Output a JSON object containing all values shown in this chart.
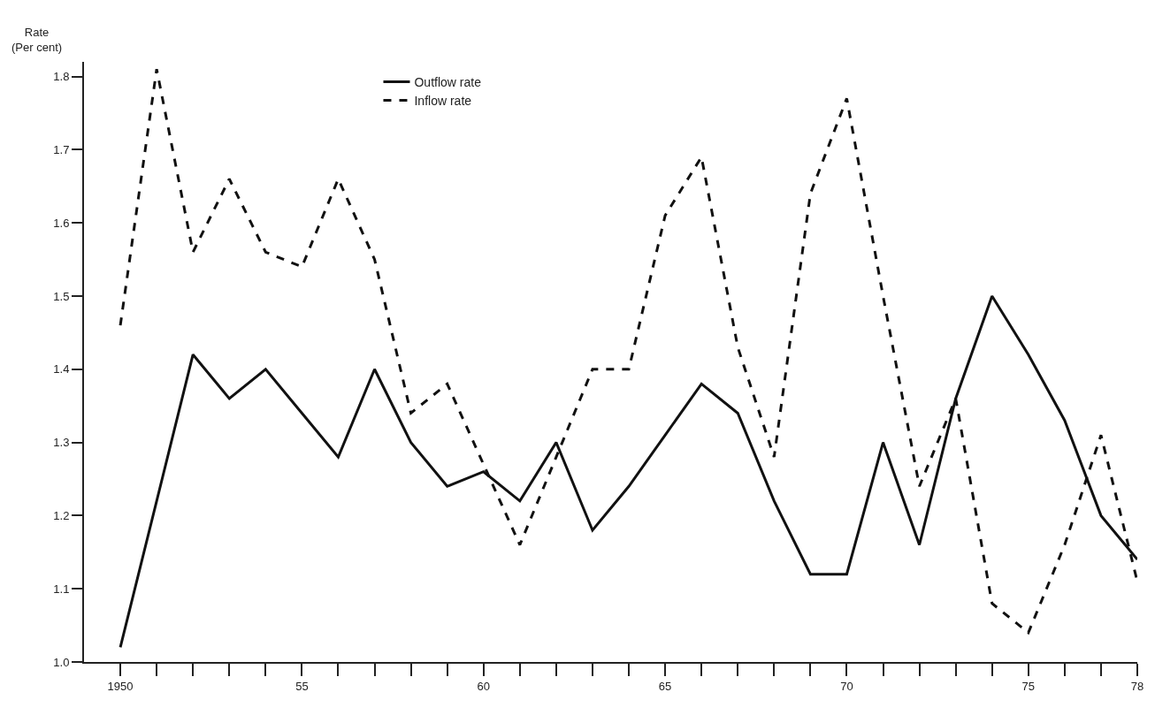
{
  "chart_data": {
    "type": "line",
    "ylabel": "Rate\n(Per cent)",
    "x": [
      1950,
      1951,
      1952,
      1953,
      1954,
      1955,
      1956,
      1957,
      1958,
      1959,
      1960,
      1961,
      1962,
      1963,
      1964,
      1965,
      1966,
      1967,
      1968,
      1969,
      1970,
      1971,
      1972,
      1973,
      1974,
      1975,
      1976,
      1977,
      1978
    ],
    "series": [
      {
        "name": "Outflow rate",
        "color": "#111111",
        "line_style": "solid",
        "values": [
          1.02,
          1.22,
          1.42,
          1.36,
          1.4,
          1.34,
          1.28,
          1.4,
          1.3,
          1.24,
          1.26,
          1.22,
          1.3,
          1.18,
          1.24,
          1.31,
          1.38,
          1.34,
          1.22,
          1.12,
          1.12,
          1.3,
          1.16,
          1.36,
          1.5,
          1.42,
          1.33,
          1.2,
          1.14
        ]
      },
      {
        "name": "Inflow rate",
        "color": "#111111",
        "line_style": "dashed",
        "values": [
          1.46,
          1.81,
          1.56,
          1.66,
          1.56,
          1.54,
          1.66,
          1.55,
          1.34,
          1.38,
          1.27,
          1.16,
          1.28,
          1.4,
          1.4,
          1.61,
          1.69,
          1.43,
          1.28,
          1.64,
          1.77,
          1.5,
          1.24,
          1.36,
          1.08,
          1.04,
          1.16,
          1.31,
          1.11
        ]
      }
    ],
    "xlim": [
      1949,
      1978
    ],
    "xticks": [
      {
        "value": 1950,
        "label": "1950"
      },
      {
        "value": 1951,
        "label": null
      },
      {
        "value": 1952,
        "label": null
      },
      {
        "value": 1953,
        "label": null
      },
      {
        "value": 1954,
        "label": null
      },
      {
        "value": 1955,
        "label": "55"
      },
      {
        "value": 1956,
        "label": null
      },
      {
        "value": 1957,
        "label": null
      },
      {
        "value": 1958,
        "label": null
      },
      {
        "value": 1959,
        "label": null
      },
      {
        "value": 1960,
        "label": "60"
      },
      {
        "value": 1961,
        "label": null
      },
      {
        "value": 1962,
        "label": null
      },
      {
        "value": 1963,
        "label": null
      },
      {
        "value": 1964,
        "label": null
      },
      {
        "value": 1965,
        "label": "65"
      },
      {
        "value": 1966,
        "label": null
      },
      {
        "value": 1967,
        "label": null
      },
      {
        "value": 1968,
        "label": null
      },
      {
        "value": 1969,
        "label": null
      },
      {
        "value": 1970,
        "label": "70"
      },
      {
        "value": 1971,
        "label": null
      },
      {
        "value": 1972,
        "label": null
      },
      {
        "value": 1973,
        "label": null
      },
      {
        "value": 1974,
        "label": null
      },
      {
        "value": 1975,
        "label": "75"
      },
      {
        "value": 1976,
        "label": null
      },
      {
        "value": 1977,
        "label": null
      },
      {
        "value": 1978,
        "label": "78"
      }
    ],
    "ylim": [
      1.0,
      1.82
    ],
    "yticks": [
      {
        "value": 1.0,
        "label": "1.0"
      },
      {
        "value": 1.1,
        "label": "1.1"
      },
      {
        "value": 1.2,
        "label": "1.2"
      },
      {
        "value": 1.3,
        "label": "1.3"
      },
      {
        "value": 1.4,
        "label": "1.4"
      },
      {
        "value": 1.5,
        "label": "1.5"
      },
      {
        "value": 1.6,
        "label": "1.6"
      },
      {
        "value": 1.7,
        "label": "1.7"
      },
      {
        "value": 1.8,
        "label": "1.8"
      }
    ],
    "grid": false,
    "legend": "top left",
    "marker": "none"
  }
}
